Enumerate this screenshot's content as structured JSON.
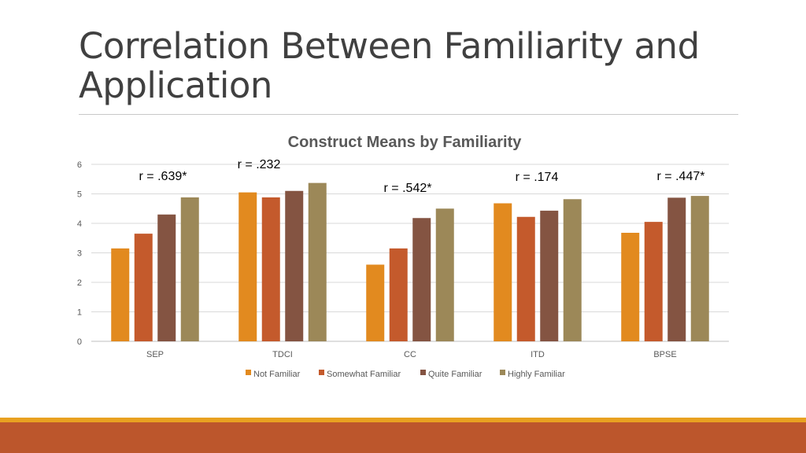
{
  "slide": {
    "title": "Correlation Between Familiarity and Application"
  },
  "chart_data": {
    "type": "bar",
    "title": "Construct Means by Familiarity",
    "categories": [
      "SEP",
      "TDCI",
      "CC",
      "ITD",
      "BPSE"
    ],
    "ylim": [
      0,
      6
    ],
    "yticks": [
      "0",
      "1",
      "2",
      "3",
      "4",
      "5",
      "6"
    ],
    "grid": true,
    "legend_position": "bottom",
    "series": [
      {
        "name": "Not Familiar",
        "color": "#e28a1f",
        "values": [
          3.15,
          5.05,
          2.6,
          4.68,
          3.68
        ]
      },
      {
        "name": "Somewhat Familiar",
        "color": "#c45a2c",
        "values": [
          3.65,
          4.88,
          3.15,
          4.22,
          4.05
        ]
      },
      {
        "name": "Quite Familiar",
        "color": "#845442",
        "values": [
          4.3,
          5.1,
          4.18,
          4.43,
          4.87
        ]
      },
      {
        "name": "Highly Familiar",
        "color": "#9c8858",
        "values": [
          4.88,
          5.37,
          4.5,
          4.82,
          4.93
        ]
      }
    ],
    "annotations": [
      "r = .639*",
      "r = .232",
      "r = .542*",
      "r = .174",
      "r = .447*"
    ]
  }
}
